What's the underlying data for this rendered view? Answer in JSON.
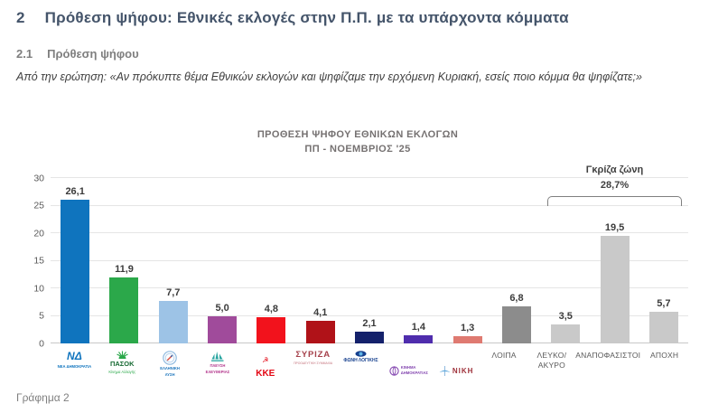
{
  "page": {
    "heading_number": "2",
    "heading": "Πρόθεση ψήφου: Εθνικές εκλογές στην Π.Π. με τα υπάρχοντα κόμματα",
    "subheading_number": "2.1",
    "subheading": "Πρόθεση ψήφου",
    "question": "Από την ερώτηση: «Αν πρόκυπτε θέμα Εθνικών εκλογών και ψηφίζαμε την ερχόμενη Κυριακή, εσείς ποιο κόμμα θα ψηφίζατε;»",
    "caption": "Γράφημα 2"
  },
  "chart_data": {
    "type": "bar",
    "title_line1": "ΠΡΟΘΕΣΗ ΨΗΦΟΥ  ΕΘΝΙΚΩΝ ΕΚΛΟΓΩΝ",
    "title_line2": "ΠΠ - ΝΟΕΜΒΡΙΟΣ '25",
    "ylim": [
      0,
      30
    ],
    "ytick_step": 5,
    "grid": true,
    "values": [
      26.1,
      11.9,
      7.7,
      5.0,
      4.8,
      4.1,
      2.1,
      1.4,
      1.3,
      6.8,
      3.5,
      19.5,
      5.7
    ],
    "value_labels": [
      "26,1",
      "11,9",
      "7,7",
      "5,0",
      "4,8",
      "4,1",
      "2,1",
      "1,4",
      "1,3",
      "6,8",
      "3,5",
      "19,5",
      "5,7"
    ],
    "bar_colors": [
      "#0F74BE",
      "#2BA84A",
      "#9DC3E6",
      "#A04B9B",
      "#F2121C",
      "#B01218",
      "#14216B",
      "#4F2DAD",
      "#DF7A71",
      "#8C8C8C",
      "#C9C9C9",
      "#C9C9C9",
      "#C9C9C9"
    ],
    "annotation": {
      "label": "Γκρίζα ζώνη",
      "value": "28,7%",
      "span_from_index": 10,
      "span_to_index": 12,
      "bracket_y": 25
    },
    "categories": [
      {
        "name": "ΝΕΑ ΔΗΜΟΚΡΑΤΙΑ",
        "kind": "logo",
        "icon": null,
        "lines": [
          {
            "text": "ΝΔ",
            "size": 12,
            "weight": 700,
            "color": "#0F74BE",
            "italic": true
          },
          {
            "text": "ΝΕΑ ΔΗΜΟΚΡΑΤΙΑ",
            "size": 4.2,
            "weight": 700,
            "color": "#0F74BE"
          }
        ]
      },
      {
        "name": "ΠΑΣΟΚ",
        "kind": "logo",
        "icon": "pasok-sun-icon",
        "lines": [
          {
            "text": "ΠΑΣΟΚ",
            "size": 7.5,
            "weight": 700,
            "color": "#176A33"
          },
          {
            "text": "Κίνημα Αλλαγής",
            "size": 4.2,
            "weight": 400,
            "color": "#2BA84A"
          }
        ]
      },
      {
        "name": "ΕΛΛΗΝΙΚΗ ΛΥΣΗ",
        "kind": "logo",
        "icon": "compass-icon",
        "lines": [
          {
            "text": "ΕΛΛΗΝΙΚΗ",
            "size": 4.2,
            "weight": 700,
            "color": "#1B75BC"
          },
          {
            "text": "ΛΥΣΗ",
            "size": 4.2,
            "weight": 700,
            "color": "#1B75BC"
          }
        ]
      },
      {
        "name": "ΠΛΕΥΣΗ ΕΛΕΥΘΕΡΙΑΣ",
        "kind": "logo",
        "icon": "sailboat-icon",
        "lines": [
          {
            "text": "ΠΛΕΥΣΗ",
            "size": 4.2,
            "weight": 700,
            "color": "#B3368C"
          },
          {
            "text": "ΕΛΕΥΘΕΡΙΑΣ",
            "size": 4.2,
            "weight": 700,
            "color": "#B3368C"
          }
        ]
      },
      {
        "name": "ΚΚΕ",
        "kind": "logo",
        "icon": "hammer-sickle-icon",
        "lines": [
          {
            "text": "ΚΚΕ",
            "size": 10,
            "weight": 800,
            "color": "#E30613"
          }
        ]
      },
      {
        "name": "ΣΥΡΙΖΑ",
        "kind": "logo",
        "icon": null,
        "lines": [
          {
            "text": "ΣΥΡΙΖΑ",
            "size": 9.5,
            "weight": 700,
            "color": "#A6424C",
            "spacing": 0.8
          },
          {
            "text": "ΠΡΟΟΔΕΥΤΙΚΗ ΣΥΜΜΑΧΙΑ",
            "size": 3.4,
            "weight": 400,
            "color": "#C4707A"
          }
        ]
      },
      {
        "name": "ΦΩΝΗ ΛΟΓΙΚΗΣ",
        "kind": "logo",
        "icon": "eye-icon",
        "lines": [
          {
            "text": "ΦΩΝΗ ΛΟΓΙΚΗΣ",
            "size": 5,
            "weight": 800,
            "color": "#17418F"
          }
        ]
      },
      {
        "name": "ΚΙΝΗΜΑ ΔΗΜΟΚΡΑΤΙΑΣ",
        "kind": "logo",
        "icon": "rosette-icon",
        "row": true,
        "lines": [
          {
            "text": "ΚΙΝΗΜΑ",
            "size": 4.2,
            "weight": 700,
            "color": "#8447B0"
          },
          {
            "text": "ΔΗΜΟΚΡΑΤΙΑΣ",
            "size": 4.2,
            "weight": 700,
            "color": "#8447B0"
          }
        ]
      },
      {
        "name": "ΝΙΚΗ",
        "kind": "logo",
        "icon": "niki-bird-icon",
        "row": true,
        "lines": [
          {
            "text": "ΝΙΚΗ",
            "size": 8,
            "weight": 700,
            "color": "#9E3039",
            "spacing": 1
          }
        ]
      },
      {
        "name": "ΛΟΙΠΑ",
        "kind": "text",
        "display": "ΛΟΙΠΑ"
      },
      {
        "name": "ΛΕΥΚΟ/ ΑΚΥΡΟ",
        "kind": "text",
        "display": "ΛΕΥΚΟ/\nΑΚΥΡΟ"
      },
      {
        "name": "ΑΝΑΠΟΦΑΣΙΣΤΟΙ",
        "kind": "text",
        "display": "ΑΝΑΠΟΦΑΣΙΣΤΟΙ"
      },
      {
        "name": "ΑΠΟΧΗ",
        "kind": "text",
        "display": "ΑΠΟΧΗ"
      }
    ]
  }
}
